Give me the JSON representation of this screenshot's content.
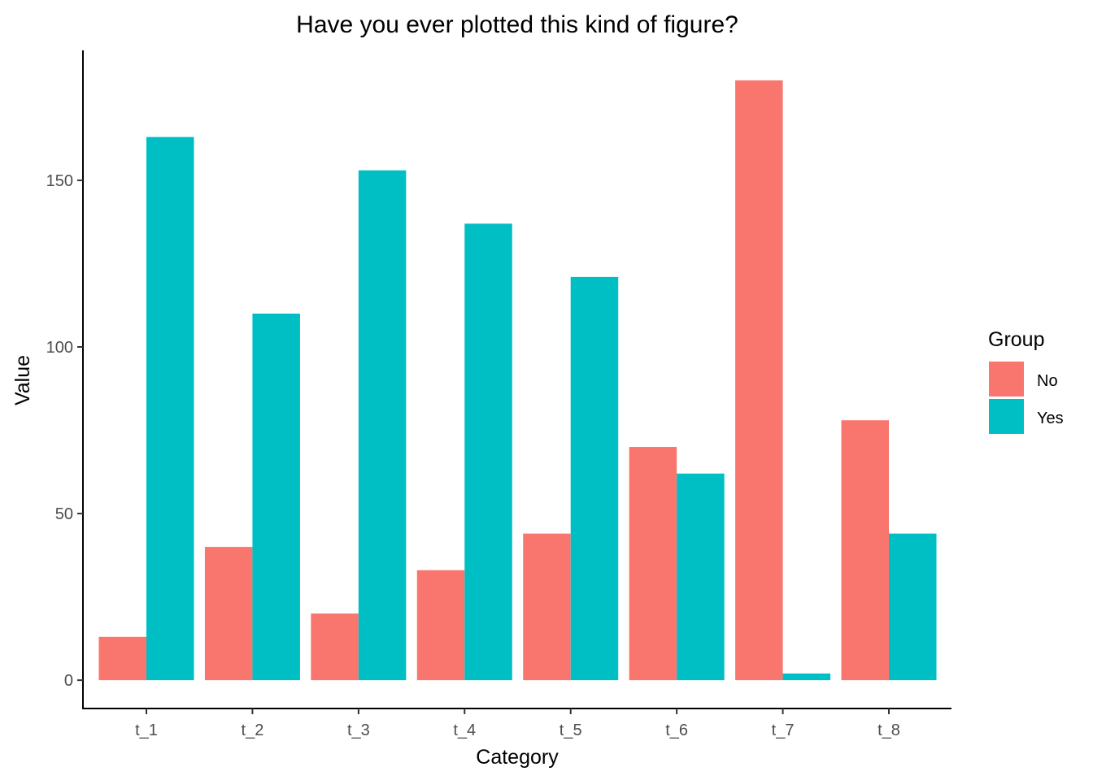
{
  "chart_data": {
    "type": "bar",
    "title": "Have you ever plotted this kind of figure?",
    "xlabel": "Category",
    "ylabel": "Value",
    "categories": [
      "t_1",
      "t_2",
      "t_3",
      "t_4",
      "t_5",
      "t_6",
      "t_7",
      "t_8"
    ],
    "series": [
      {
        "name": "No",
        "color": "#F8766D",
        "values": [
          13,
          40,
          20,
          33,
          44,
          70,
          180,
          78
        ]
      },
      {
        "name": "Yes",
        "color": "#00BFC4",
        "values": [
          163,
          110,
          153,
          137,
          121,
          62,
          2,
          44
        ]
      }
    ],
    "yticks": [
      0,
      50,
      100,
      150
    ],
    "ylim": [
      -8.5,
      189
    ],
    "grid": false,
    "legend": {
      "title": "Group",
      "position": "right"
    }
  }
}
